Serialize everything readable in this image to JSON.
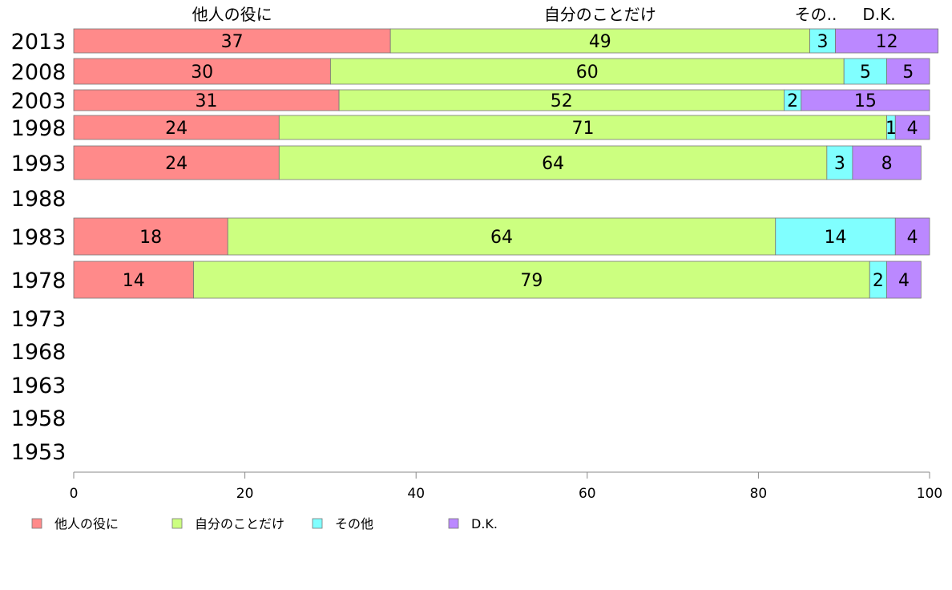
{
  "chart_data": {
    "type": "bar",
    "orientation": "horizontal",
    "stacked": true,
    "title": "",
    "xlabel": "",
    "ylabel": "",
    "xlim": [
      0,
      100
    ],
    "x_ticks": [
      "0",
      "20",
      "40",
      "60",
      "80",
      "100"
    ],
    "column_headers": [
      "他人の役に",
      "自分のことだけ",
      "その..",
      "D.K."
    ],
    "categories": [
      "2013",
      "2008",
      "2003",
      "1998",
      "1993",
      "1988",
      "1983",
      "1978",
      "1973",
      "1968",
      "1963",
      "1958",
      "1953"
    ],
    "series": [
      {
        "name": "他人の役に",
        "color": "#ff8a8a",
        "values": [
          37,
          30,
          31,
          24,
          24,
          null,
          18,
          14,
          null,
          null,
          null,
          null,
          null
        ]
      },
      {
        "name": "自分のことだけ",
        "color": "#ccff80",
        "values": [
          49,
          60,
          52,
          71,
          64,
          null,
          64,
          79,
          null,
          null,
          null,
          null,
          null
        ]
      },
      {
        "name": "その他",
        "color": "#80ffff",
        "values": [
          3,
          5,
          2,
          1,
          3,
          null,
          14,
          2,
          null,
          null,
          null,
          null,
          null
        ]
      },
      {
        "name": "D.K.",
        "color": "#bb88ff",
        "values": [
          12,
          5,
          15,
          4,
          8,
          null,
          4,
          4,
          null,
          null,
          null,
          null,
          null
        ]
      }
    ],
    "grid": false,
    "legend_position": "bottom"
  }
}
